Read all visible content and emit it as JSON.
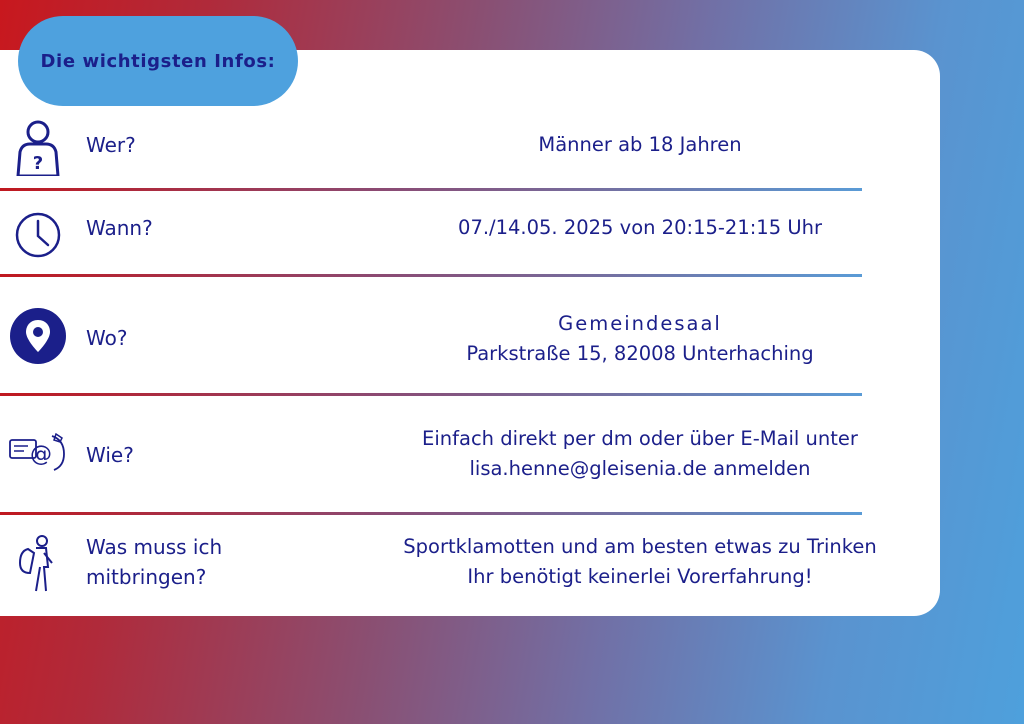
{
  "header": {
    "title": "Die wichtigsten Infos:"
  },
  "rows": [
    {
      "icon": "person-question-icon",
      "label": "Wer?",
      "value_lines": [
        "Männer ab 18 Jahren"
      ]
    },
    {
      "icon": "clock-icon",
      "label": "Wann?",
      "value_lines": [
        "07./14.05. 2025 von 20:15-21:15 Uhr"
      ]
    },
    {
      "icon": "location-pin-icon",
      "label": "Wo?",
      "value_lines": [
        "Gemeindesaal",
        "Parkstraße 15, 82008 Unterhaching"
      ]
    },
    {
      "icon": "contact-email-phone-icon",
      "label": "Wie?",
      "value_lines": [
        "Einfach direkt per dm oder über E-Mail unter",
        "lisa.henne@gleisenia.de anmelden"
      ]
    },
    {
      "icon": "hiker-backpack-icon",
      "label_lines": [
        "Was muss ich",
        "mitbringen?"
      ],
      "value_lines": [
        "Sportklamotten und am besten etwas zu Trinken",
        "Ihr benötigt keinerlei Vorerfahrung!"
      ]
    }
  ],
  "colors": {
    "accent_blue": "#4ea1de",
    "text_navy": "#1b1f8a",
    "red": "#c8181e"
  }
}
